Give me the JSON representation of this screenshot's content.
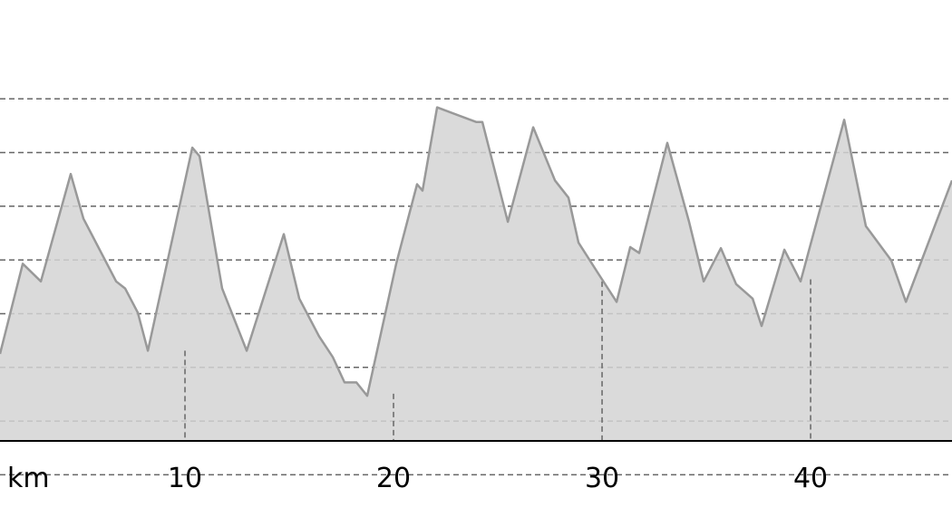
{
  "chart_data": {
    "type": "area",
    "title": "",
    "xlabel": "",
    "ylabel": "",
    "x_unit_label": "km",
    "x_ticks": [
      10,
      20,
      30,
      40
    ],
    "x_tick_labels": [
      "10",
      "20",
      "30",
      "40"
    ],
    "xlim": [
      1.13,
      46.78
    ],
    "ylim": [
      0.4,
      9.84
    ],
    "y_gridlines": [
      1,
      2,
      3,
      4,
      5,
      6,
      7,
      8
    ],
    "grid": true,
    "colors": {
      "fill": "#d3d3d3",
      "line": "#999999",
      "grid": "#666666",
      "axis": "#000000"
    },
    "x": [
      1.13,
      2.22,
      3.09,
      4.52,
      5.13,
      6.7,
      7.13,
      7.74,
      8.22,
      10.35,
      10.7,
      11.78,
      12.96,
      14.74,
      15.48,
      16.43,
      17.09,
      17.65,
      18.22,
      18.74,
      20.13,
      21.13,
      21.39,
      22.09,
      23.96,
      24.26,
      25.48,
      26.7,
      27.74,
      28.39,
      28.87,
      29.83,
      30.7,
      31.35,
      31.78,
      33.13,
      34.17,
      34.87,
      35.7,
      36.43,
      37.22,
      37.65,
      38.74,
      39.52,
      41.61,
      42.65,
      43.87,
      44.57,
      46.78
    ],
    "y": [
      3.25,
      4.93,
      4.6,
      6.6,
      5.77,
      4.6,
      4.47,
      4.02,
      3.31,
      7.09,
      6.93,
      4.47,
      3.31,
      5.48,
      4.28,
      3.58,
      3.19,
      2.72,
      2.72,
      2.47,
      4.93,
      6.41,
      6.29,
      7.84,
      7.57,
      7.57,
      5.71,
      7.47,
      6.48,
      6.16,
      5.32,
      4.74,
      4.22,
      5.24,
      5.13,
      7.18,
      5.71,
      4.6,
      5.22,
      4.55,
      4.28,
      3.77,
      5.19,
      4.6,
      7.61,
      5.63,
      4.99,
      4.22,
      6.48
    ],
    "km_markers": [
      {
        "km": 10,
        "top": 3.31
      },
      {
        "km": 20,
        "top": 2.51
      },
      {
        "km": 30,
        "top": 4.6
      },
      {
        "km": 40,
        "top": 4.64
      }
    ]
  }
}
